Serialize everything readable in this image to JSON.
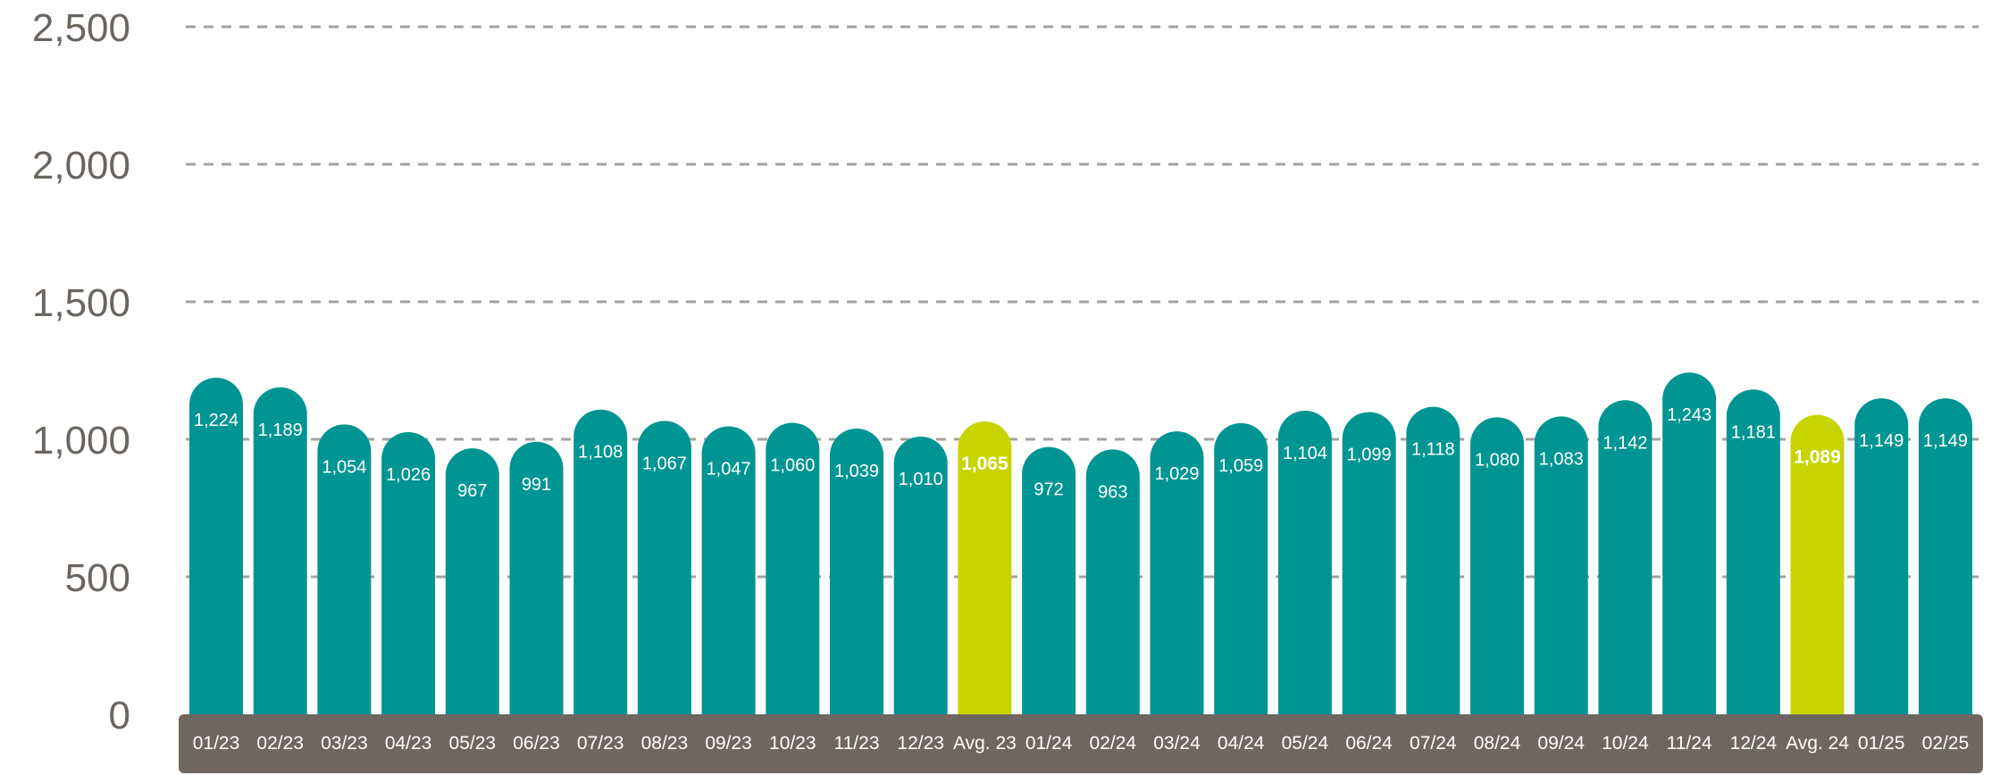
{
  "chart_data": {
    "type": "bar",
    "title": "",
    "xlabel": "",
    "ylabel": "",
    "ylim": [
      0,
      2500
    ],
    "yticks": [
      0,
      500,
      1000,
      1500,
      2000,
      2500
    ],
    "ytick_labels": [
      "0",
      "500",
      "1,000",
      "1,500",
      "2,000",
      "2,500"
    ],
    "grid": true,
    "categories": [
      "01/23",
      "02/23",
      "03/23",
      "04/23",
      "05/23",
      "06/23",
      "07/23",
      "08/23",
      "09/23",
      "10/23",
      "11/23",
      "12/23",
      "Avg. 23",
      "01/24",
      "02/24",
      "03/24",
      "04/24",
      "05/24",
      "06/24",
      "07/24",
      "08/24",
      "09/24",
      "10/24",
      "11/24",
      "12/24",
      "Avg. 24",
      "01/25",
      "02/25"
    ],
    "values": [
      1224,
      1189,
      1054,
      1026,
      967,
      991,
      1108,
      1067,
      1047,
      1060,
      1039,
      1010,
      1065,
      972,
      963,
      1029,
      1059,
      1104,
      1099,
      1118,
      1080,
      1083,
      1142,
      1243,
      1181,
      1089,
      1149,
      1149
    ],
    "value_labels": [
      "1,224",
      "1,189",
      "1,054",
      "1,026",
      "967",
      "991",
      "1,108",
      "1,067",
      "1,047",
      "1,060",
      "1,039",
      "1,010",
      "1,065",
      "972",
      "963",
      "1,029",
      "1,059",
      "1,104",
      "1,099",
      "1,118",
      "1,080",
      "1,083",
      "1,142",
      "1,243",
      "1,181",
      "1,089",
      "1,149",
      "1,149"
    ],
    "highlighted_categories": [
      "Avg. 23",
      "Avg. 24"
    ],
    "colors": {
      "bar": "#009593",
      "highlight_bar": "#c8d400",
      "highlight_label": "#0a9a96",
      "value_label": "#ffffff",
      "axis_band": "#6f6661",
      "axis_label": "#ffffff",
      "ytick_label": "#6b6560",
      "grid": "#a5a19c"
    }
  }
}
